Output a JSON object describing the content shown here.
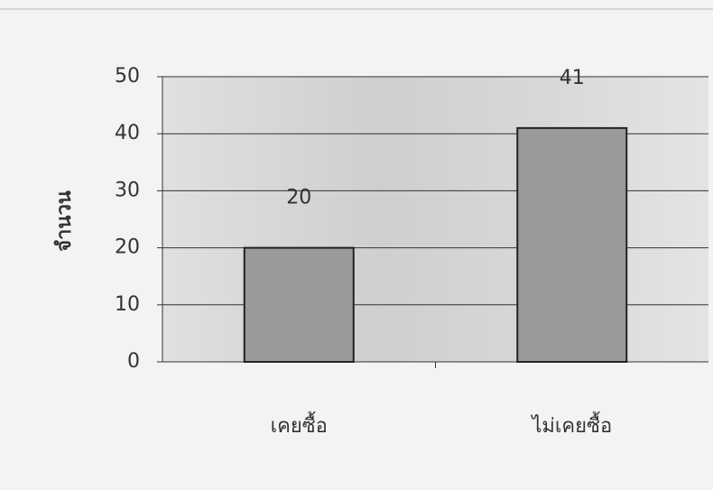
{
  "chart_data": {
    "type": "bar",
    "y_label": "จำนวน",
    "categories": [
      "เคยซื้อ",
      "ไม่เคยซื้อ"
    ],
    "values": [
      20,
      41
    ],
    "color": "#9a9a9a",
    "ylim": [
      0,
      50
    ],
    "yticks": [
      0,
      10,
      20,
      30,
      40,
      50
    ],
    "grid": true,
    "data_labels": true
  }
}
